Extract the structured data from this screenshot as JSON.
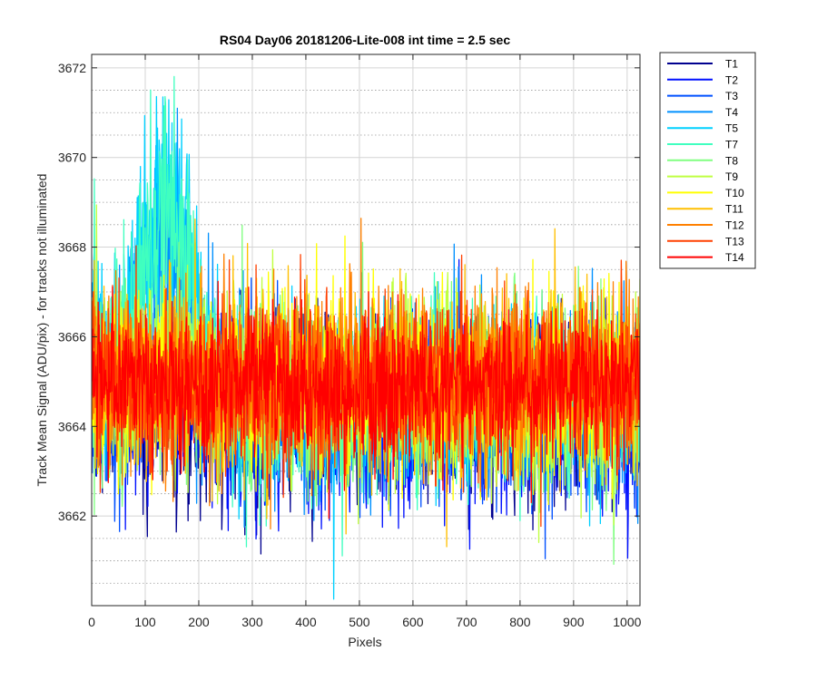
{
  "chart_data": {
    "type": "line",
    "title": "RS04 Day06 20181206-Lite-008 int time = 2.5 sec",
    "xlabel": "Pixels",
    "ylabel": "Track Mean Signal (ADU/pix) - for tracks not illuminated",
    "xlim": [
      0,
      1024
    ],
    "ylim": [
      3660.0,
      3672.3
    ],
    "x_ticks": [
      0,
      100,
      200,
      300,
      400,
      500,
      600,
      700,
      800,
      900,
      1000
    ],
    "y_ticks": [
      3662,
      3664,
      3666,
      3668,
      3670,
      3672
    ],
    "x_tick_labels": [
      "0",
      "100",
      "200",
      "300",
      "400",
      "500",
      "600",
      "700",
      "800",
      "900",
      "1000"
    ],
    "y_tick_labels": [
      "3662",
      "3664",
      "3666",
      "3668",
      "3670",
      "3672"
    ],
    "grid": "major and minor",
    "legend_position": "outside-top-right",
    "series": [
      {
        "name": "T1",
        "color": "#00008f",
        "mean": 3664.3,
        "noise": 1.0,
        "edge_boost": 0.0,
        "hump": 0.0
      },
      {
        "name": "T2",
        "color": "#0010ff",
        "mean": 3664.2,
        "noise": 1.1,
        "edge_boost": 0.0,
        "hump": 0.5
      },
      {
        "name": "T3",
        "color": "#0050ff",
        "mean": 3664.3,
        "noise": 1.0,
        "edge_boost": 0.0,
        "hump": 1.2
      },
      {
        "name": "T4",
        "color": "#0090ff",
        "mean": 3664.5,
        "noise": 1.0,
        "edge_boost": 1.5,
        "hump": 3.5
      },
      {
        "name": "T5",
        "color": "#00d0ff",
        "mean": 3664.6,
        "noise": 1.0,
        "edge_boost": 1.5,
        "hump": 5.0
      },
      {
        "name": "T7",
        "color": "#40ffbf",
        "mean": 3664.6,
        "noise": 1.0,
        "edge_boost": 1.2,
        "hump": 4.2
      },
      {
        "name": "T8",
        "color": "#80ff80",
        "mean": 3664.7,
        "noise": 1.0,
        "edge_boost": 0.8,
        "hump": 0.8
      },
      {
        "name": "T9",
        "color": "#bfff40",
        "mean": 3664.8,
        "noise": 1.0,
        "edge_boost": 0.6,
        "hump": 0.3
      },
      {
        "name": "T10",
        "color": "#ffff00",
        "mean": 3664.9,
        "noise": 1.0,
        "edge_boost": 0.5,
        "hump": 0.0
      },
      {
        "name": "T11",
        "color": "#ffbf00",
        "mean": 3665.0,
        "noise": 1.0,
        "edge_boost": 0.5,
        "hump": 0.0
      },
      {
        "name": "T12",
        "color": "#ff8000",
        "mean": 3665.0,
        "noise": 1.0,
        "edge_boost": 0.5,
        "hump": 0.0
      },
      {
        "name": "T13",
        "color": "#ff4000",
        "mean": 3665.0,
        "noise": 0.9,
        "edge_boost": 0.4,
        "hump": 0.0
      },
      {
        "name": "T14",
        "color": "#ff0000",
        "mean": 3664.9,
        "noise": 0.8,
        "edge_boost": 0.3,
        "hump": 0.0
      }
    ]
  }
}
